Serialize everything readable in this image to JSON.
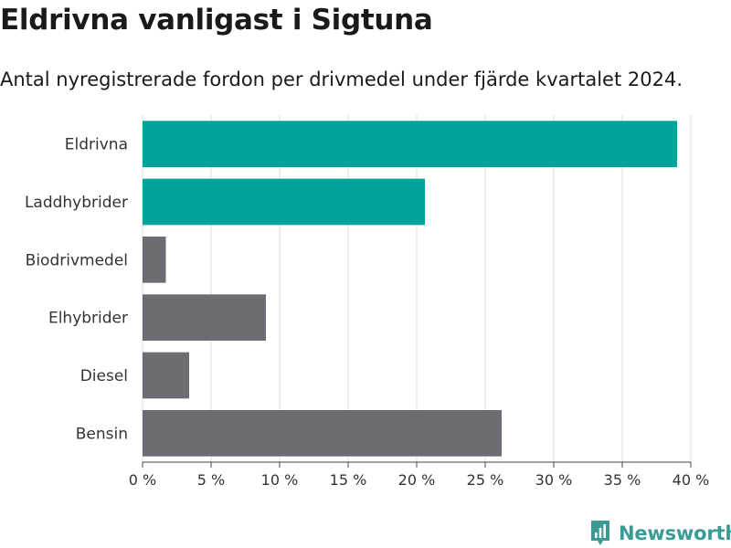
{
  "header": {
    "title": "Eldrivna vanligast i Sigtuna",
    "subtitle": "Antal nyregistrerade fordon per drivmedel under fjärde kvartalet 2024."
  },
  "brand": {
    "name": "Newsworthy",
    "icon": "newsworthy-logo-icon",
    "color": "#3a9b94"
  },
  "colors": {
    "highlight": "#00a399",
    "neutral": "#6d6c72",
    "grid": "#dddddd"
  },
  "chart_data": {
    "type": "bar",
    "orientation": "horizontal",
    "categories": [
      "Eldrivna",
      "Laddhybrider",
      "Biodrivmedel",
      "Elhybrider",
      "Diesel",
      "Bensin"
    ],
    "values": [
      39.0,
      20.6,
      1.7,
      9.0,
      3.4,
      26.2
    ],
    "highlighted": [
      true,
      true,
      false,
      false,
      false,
      false
    ],
    "xlim": [
      0,
      40
    ],
    "xticks": [
      0,
      5,
      10,
      15,
      20,
      25,
      30,
      35,
      40
    ],
    "xtick_labels": [
      "0 %",
      "5 %",
      "10 %",
      "15 %",
      "20 %",
      "25 %",
      "30 %",
      "35 %",
      "40 %"
    ],
    "grid": true,
    "legend": "none"
  }
}
